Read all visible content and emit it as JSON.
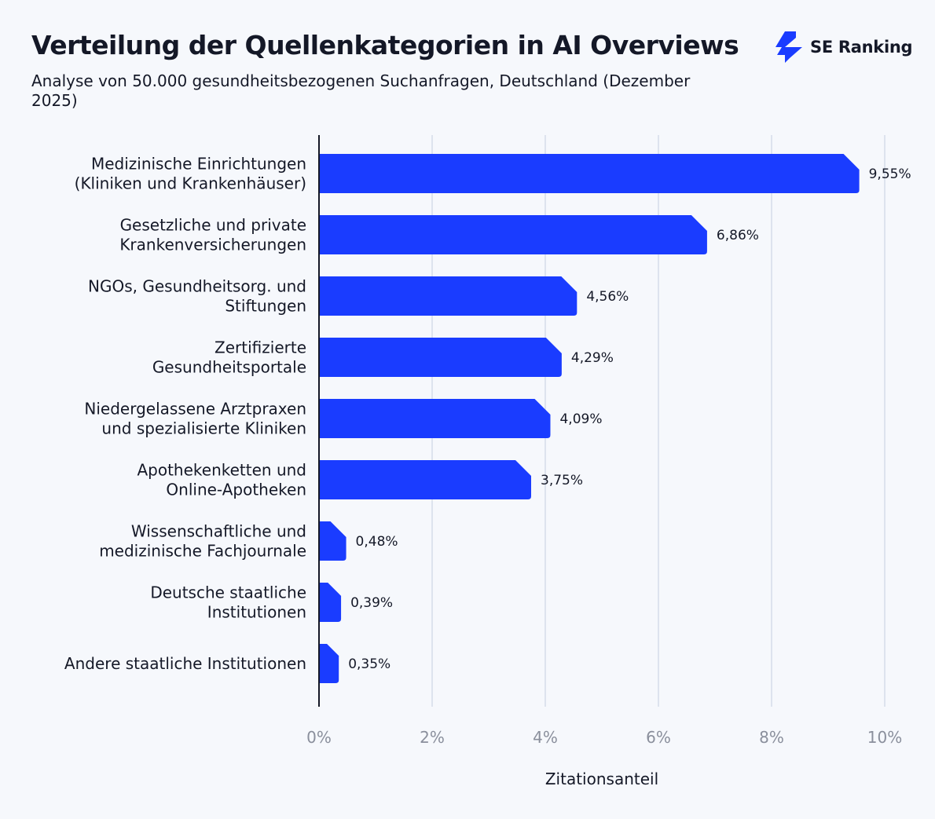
{
  "header": {
    "title": "Verteilung der Quellenkategorien in AI Overviews",
    "subtitle": "Analyse von 50.000 gesundheitsbezogenen Suchanfragen, Deutschland (Dezember 2025)",
    "logo_text": "SE Ranking"
  },
  "colors": {
    "bar": "#1a3cff",
    "grid": "#dde3ee",
    "axis": "#141827",
    "tick": "#8a8f9c",
    "background": "#f6f8fc"
  },
  "chart_data": {
    "type": "bar",
    "orientation": "horizontal",
    "title": "Verteilung der Quellenkategorien in AI Overviews",
    "subtitle": "Analyse von 50.000 gesundheitsbezogenen Suchanfragen, Deutschland (Dezember 2025)",
    "xlabel": "Zitationsanteil",
    "ylabel": "",
    "xlim": [
      0,
      10
    ],
    "xticks": [
      "0%",
      "2%",
      "4%",
      "6%",
      "8%",
      "10%"
    ],
    "grid": true,
    "categories": [
      [
        "Medizinische Einrichtungen",
        "(Kliniken und Krankenhäuser)"
      ],
      [
        "Gesetzliche und private",
        "Krankenversicherungen"
      ],
      [
        "NGOs, Gesundheitsorg. und",
        "Stiftungen"
      ],
      [
        "Zertifizierte",
        "Gesundheitsportale"
      ],
      [
        "Niedergelassene Arztpraxen",
        "und spezialisierte Kliniken"
      ],
      [
        "Apothekenketten und",
        "Online-Apotheken"
      ],
      [
        "Wissenschaftliche und",
        "medizinische Fachjournale"
      ],
      [
        "Deutsche staatliche",
        "Institutionen"
      ],
      [
        "Andere staatliche Institutionen"
      ]
    ],
    "values": [
      9.55,
      6.86,
      4.56,
      4.29,
      4.09,
      3.75,
      0.48,
      0.39,
      0.35
    ],
    "data_labels": [
      "9,55%",
      "6,86%",
      "4,56%",
      "4,29%",
      "4,09%",
      "3,75%",
      "0,48%",
      "0,39%",
      "0,35%"
    ]
  }
}
